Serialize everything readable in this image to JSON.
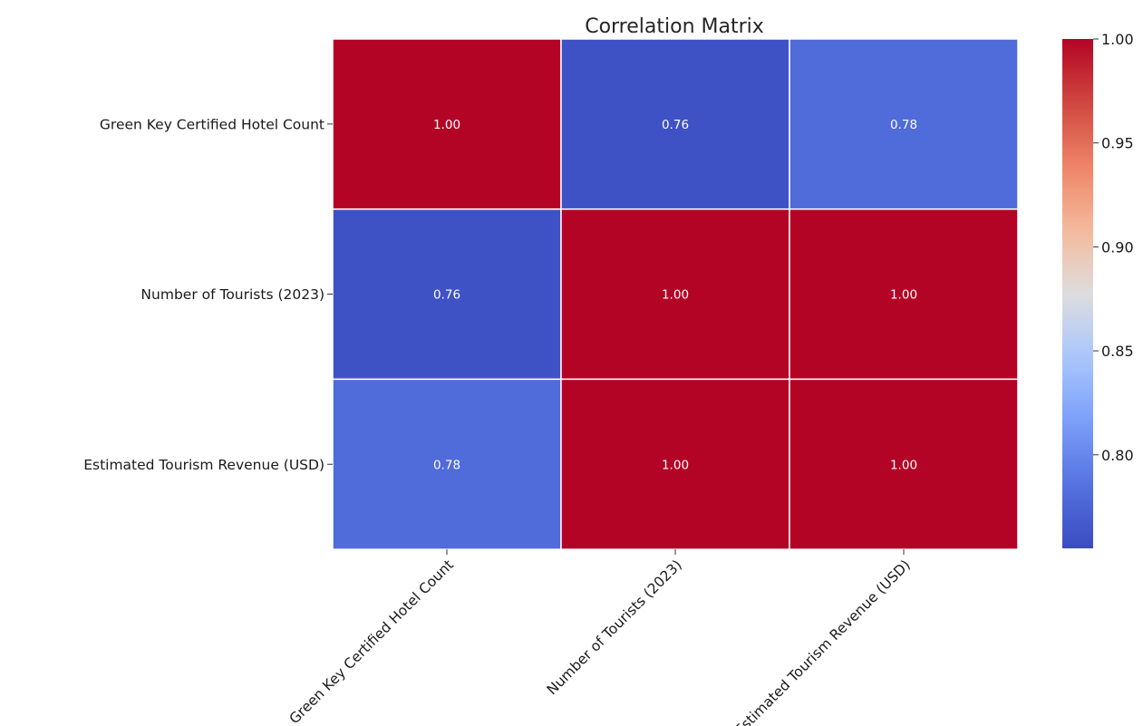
{
  "chart_data": {
    "type": "heatmap",
    "title": "Correlation Matrix",
    "xlabel": "",
    "ylabel": "",
    "row_labels": [
      "Green Key Certified Hotel Count",
      "Number of Tourists (2023)",
      "Estimated Tourism Revenue (USD)"
    ],
    "col_labels": [
      "Green Key Certified Hotel Count",
      "Number of Tourists (2023)",
      "Estimated Tourism Revenue (USD)"
    ],
    "values": [
      [
        1.0,
        0.76,
        0.78
      ],
      [
        0.76,
        1.0,
        1.0
      ],
      [
        0.78,
        1.0,
        1.0
      ]
    ],
    "cell_labels": [
      [
        "1.00",
        "0.76",
        "0.78"
      ],
      [
        "0.76",
        "1.00",
        "1.00"
      ],
      [
        "0.78",
        "1.00",
        "1.00"
      ]
    ],
    "colormap": "coolwarm",
    "colorbar": {
      "range": [
        0.755,
        1.0
      ],
      "ticks": [
        0.8,
        0.85,
        0.9,
        0.95,
        1.0
      ],
      "tick_labels": [
        "0.80",
        "0.85",
        "0.90",
        "0.95",
        "1.00"
      ]
    },
    "colors": {
      "low": "#3b4cc0",
      "mid": "#dddddd",
      "high": "#b40426"
    }
  }
}
